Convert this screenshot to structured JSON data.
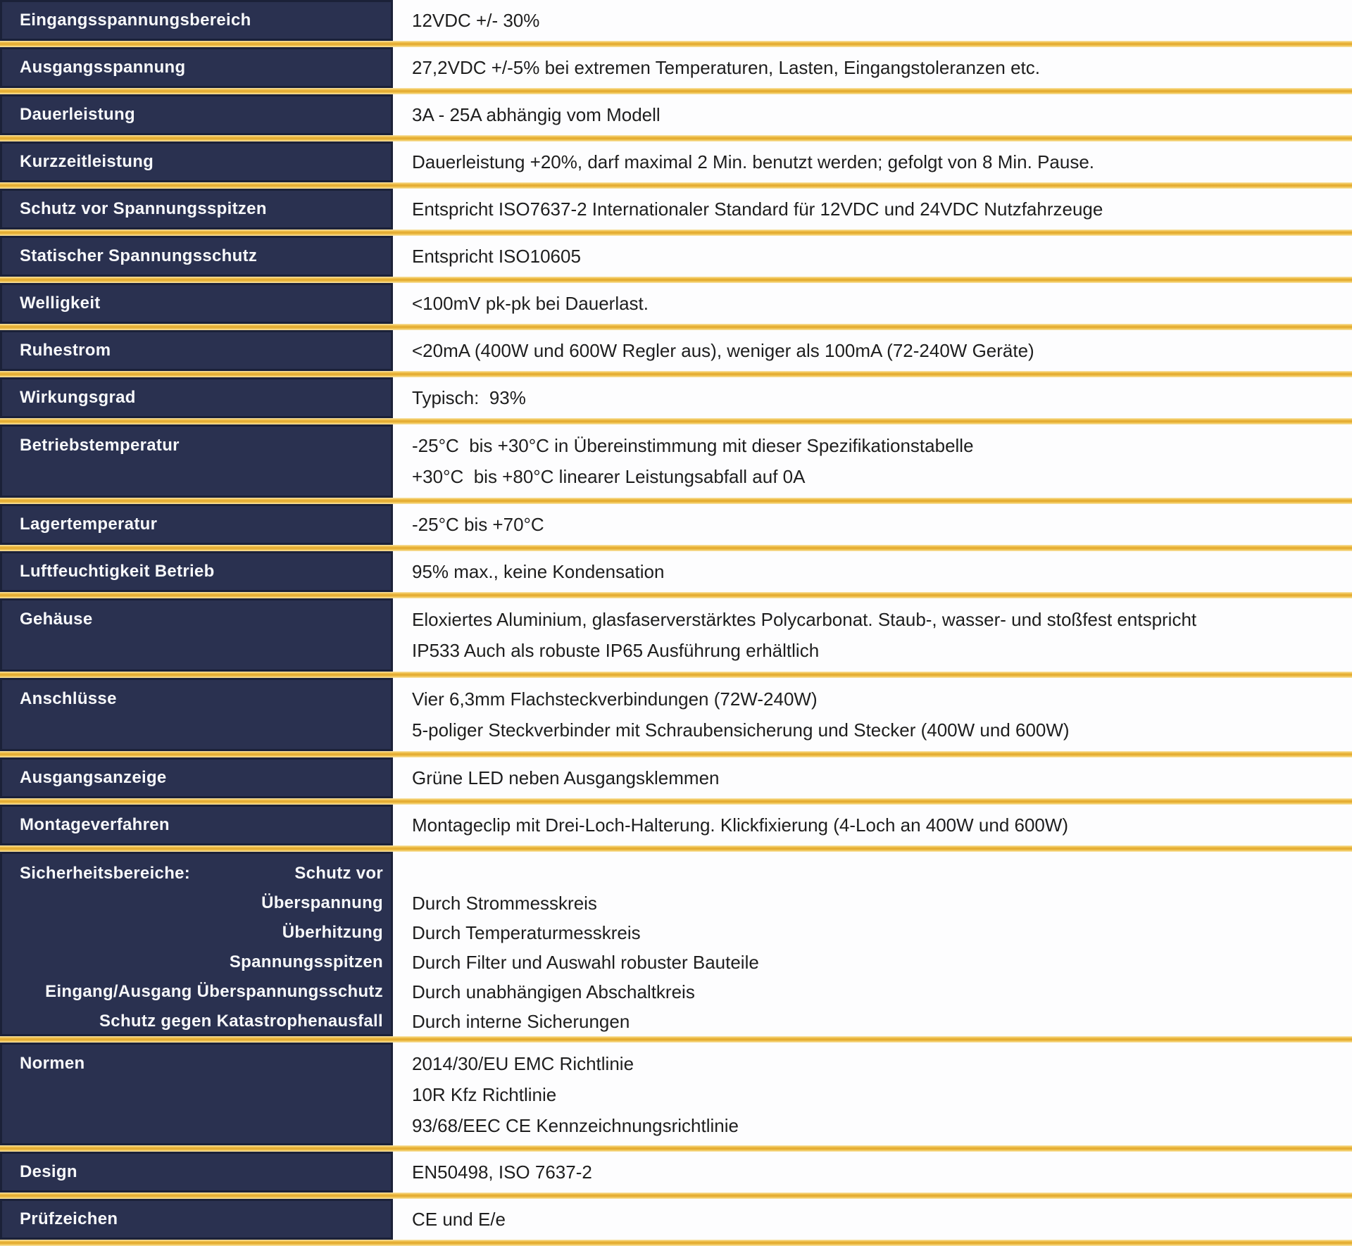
{
  "colors": {
    "label_cell_bg": "#2a3150",
    "label_cell_border": "#1b2138",
    "label_text": "#f7f8fa",
    "value_cell_bg": "#fdfdfe",
    "value_text": "#1e1e1e",
    "divider_gold": "#e1a72e"
  },
  "rows": {
    "input_range": {
      "label": "Eingangsspannungsbereich",
      "value": "12VDC +/- 30%"
    },
    "output_voltage": {
      "label": "Ausgangsspannung",
      "value": "27,2VDC +/-5% bei extremen Temperaturen, Lasten, Eingangstoleranzen etc."
    },
    "continuous_power": {
      "label": "Dauerleistung",
      "value": "3A - 25A abhängig vom Modell"
    },
    "short_term_power": {
      "label": "Kurzzeitleistung",
      "value": "Dauerleistung +20%, darf maximal 2 Min. benutzt werden; gefolgt von 8 Min. Pause."
    },
    "spike_protection": {
      "label": "Schutz vor Spannungsspitzen",
      "value": "Entspricht ISO7637-2 Internationaler Standard für 12VDC und 24VDC Nutzfahrzeuge"
    },
    "static_protection": {
      "label": "Statischer Spannungsschutz",
      "value": "Entspricht ISO10605"
    },
    "ripple": {
      "label": "Welligkeit",
      "value": "<100mV pk-pk bei Dauerlast."
    },
    "quiescent_current": {
      "label": "Ruhestrom",
      "value": "<20mA (400W und 600W Regler aus), weniger als 100mA (72-240W Geräte)"
    },
    "efficiency": {
      "label": "Wirkungsgrad",
      "value": "Typisch:  93%"
    },
    "operating_temp": {
      "label": "Betriebstemperatur",
      "line1": "-25°C  bis +30°C in Übereinstimmung mit dieser Spezifikationstabelle",
      "line2": "+30°C  bis +80°C linearer Leistungsabfall auf 0A"
    },
    "storage_temp": {
      "label": "Lagertemperatur",
      "value": "-25°C bis +70°C"
    },
    "humidity": {
      "label": "Luftfeuchtigkeit Betrieb",
      "value": "95% max., keine Kondensation"
    },
    "housing": {
      "label": "Gehäuse",
      "line1": "Eloxiertes Aluminium, glasfaserverstärktes Polycarbonat. Staub-, wasser- und stoßfest entspricht",
      "line2": "IP533 Auch als robuste IP65 Ausführung erhältlich"
    },
    "connections": {
      "label": "Anschlüsse",
      "line1": "Vier 6,3mm Flachsteckverbindungen (72W-240W)",
      "line2": "5-poliger Steckverbinder mit Schraubensicherung und Stecker (400W und 600W)"
    },
    "output_indicator": {
      "label": "Ausgangsanzeige",
      "value": "Grüne LED neben Ausgangsklemmen"
    },
    "mounting": {
      "label": "Montageverfahren",
      "value": "Montageclip mit Drei-Loch-Halterung. Klickfixierung (4-Loch an 400W und 600W)"
    },
    "safety": {
      "label": "Sicherheitsbereiche:",
      "sub1a": "Schutz vor",
      "sub1b": "Überspannung",
      "sub2": "Überhitzung",
      "sub3": "Spannungsspitzen",
      "sub4": "Eingang/Ausgang Überspannungsschutz",
      "sub5": "Schutz gegen Katastrophenausfall",
      "value1": "Durch Strommesskreis",
      "value2": "Durch Temperaturmesskreis",
      "value3": "Durch Filter und Auswahl robuster Bauteile",
      "value4": "Durch unabhängigen Abschaltkreis",
      "value5": "Durch interne Sicherungen"
    },
    "norms": {
      "label": "Normen",
      "line1": "2014/30/EU EMC Richtlinie",
      "line2": "10R Kfz Richtlinie",
      "line3": "93/68/EEC CE Kennzeichnungsrichtlinie"
    },
    "design": {
      "label": "Design",
      "value": "EN50498, ISO 7637-2"
    },
    "approval_mark": {
      "label": "Prüfzeichen",
      "value": "CE und E/e"
    }
  }
}
